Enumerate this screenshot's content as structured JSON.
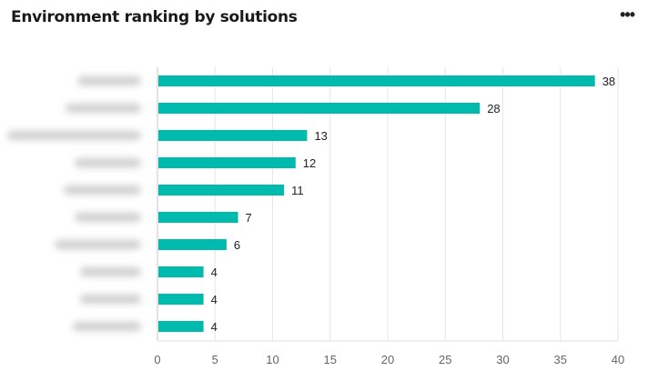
{
  "header": {
    "title": "Environment ranking by solutions",
    "more_icon": "more-horizontal-icon",
    "more_label": "•••"
  },
  "chart_data": {
    "type": "bar",
    "orientation": "horizontal",
    "title": "Environment ranking by solutions",
    "categories_blurred": true,
    "values": [
      38,
      28,
      13,
      12,
      11,
      7,
      6,
      4,
      4,
      4
    ],
    "xlim": [
      0,
      40
    ],
    "xticks": [
      0,
      5,
      10,
      15,
      20,
      25,
      30,
      35,
      40
    ],
    "grid": "vertical",
    "bar_color": "#00bbad",
    "data_labels": true
  }
}
